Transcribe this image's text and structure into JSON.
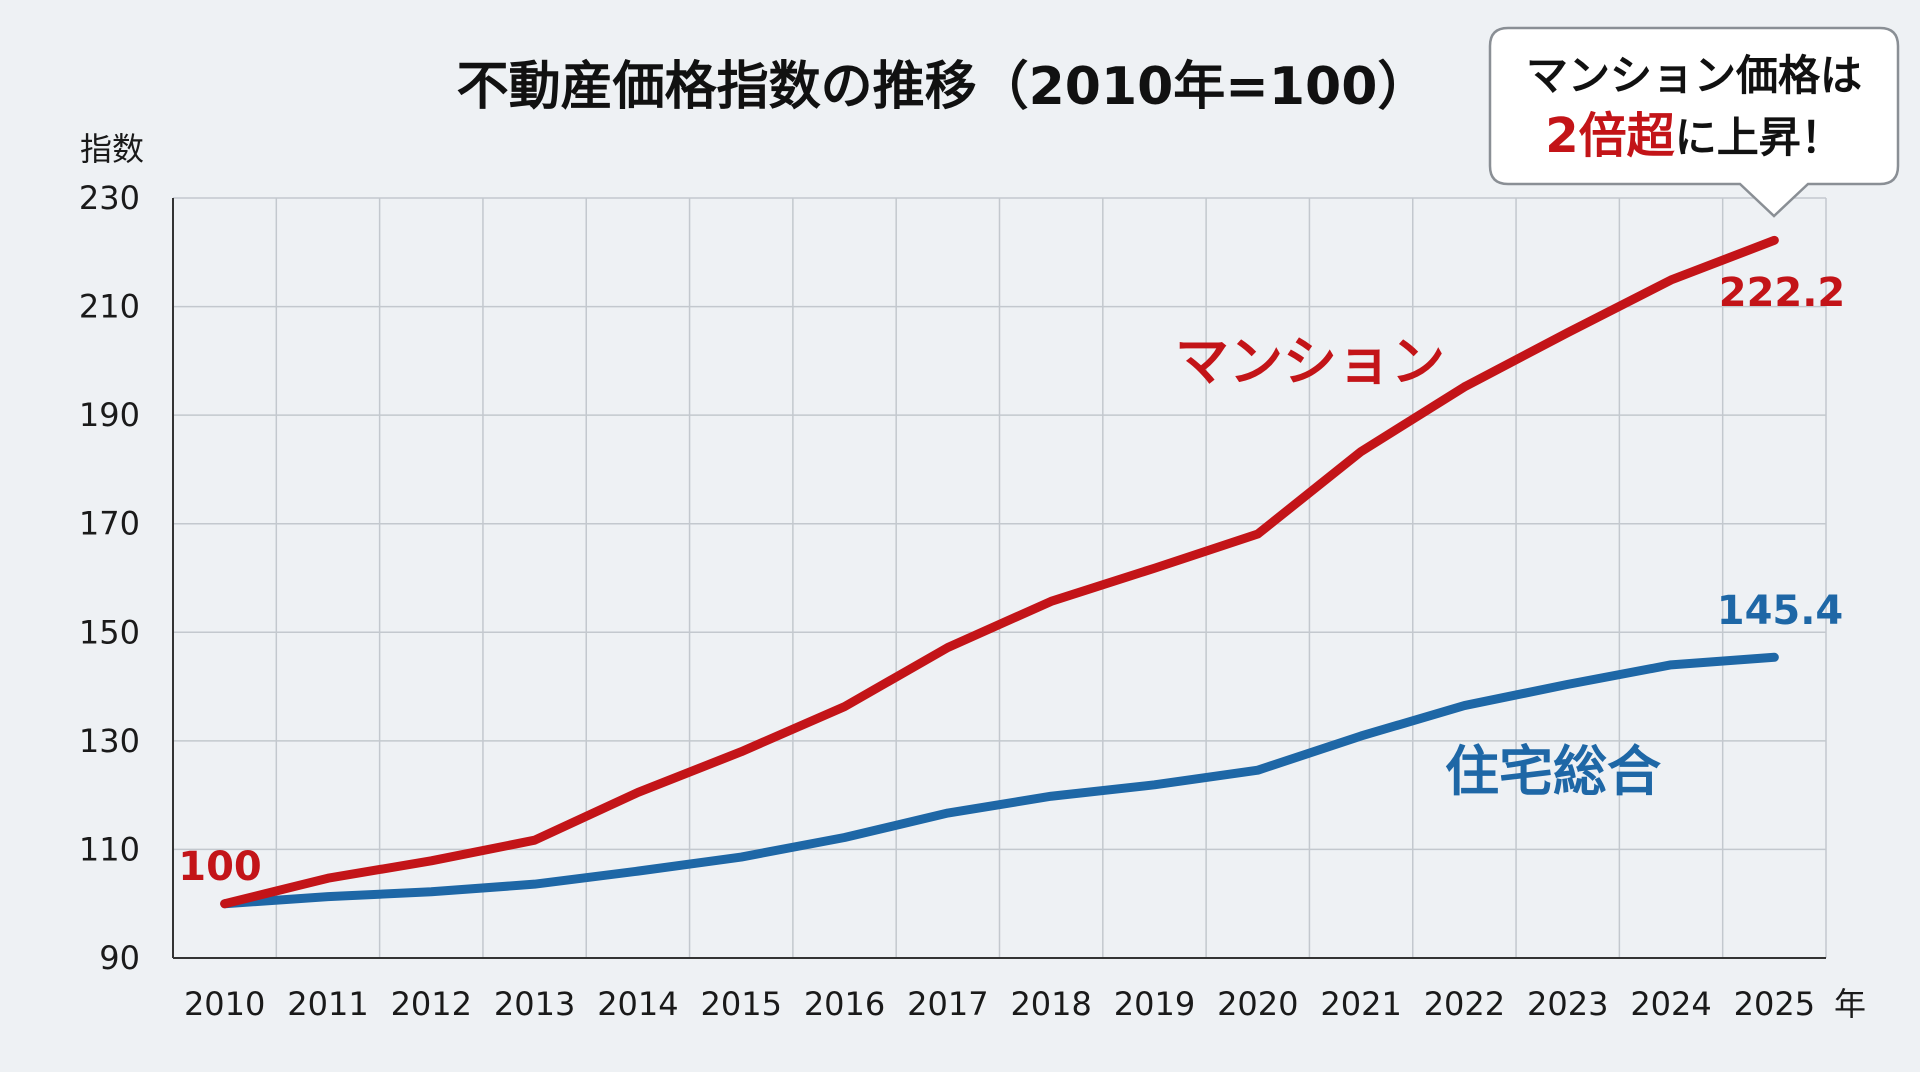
{
  "chart_data": {
    "type": "line",
    "title": "不動産価格指数の推移（2010年=100）",
    "ylabel": "指数",
    "xlabel": "年",
    "ylim": [
      90,
      230
    ],
    "yticks": [
      90,
      110,
      130,
      150,
      170,
      190,
      210,
      230
    ],
    "grid": true,
    "categories": [
      "2010",
      "2011",
      "2012",
      "2013",
      "2014",
      "2015",
      "2016",
      "2017",
      "2018",
      "2019",
      "2020",
      "2021",
      "2022",
      "2023",
      "2024",
      "2025"
    ],
    "series": [
      {
        "name": "マンション",
        "color": "#c31418",
        "values": [
          100,
          104.7,
          107.9,
          111.7,
          120.5,
          128,
          136.3,
          147.2,
          155.7,
          161.8,
          168.1,
          183.3,
          195.2,
          205.2,
          214.9,
          222.2
        ]
      },
      {
        "name": "住宅総合",
        "color": "#1e67a6",
        "values": [
          100,
          101.3,
          102.2,
          103.6,
          106,
          108.6,
          112.2,
          116.7,
          119.8,
          121.9,
          124.6,
          130.9,
          136.5,
          140.4,
          144,
          145.4
        ]
      }
    ],
    "annotations": {
      "start_label": "100",
      "end_label_mansion": "222.2",
      "end_label_housing": "145.4"
    },
    "callout": {
      "line1": "マンション価格は",
      "line2_highlight": "2倍超",
      "line2_rest": "に上昇！",
      "highlight_color": "#c31418"
    }
  }
}
